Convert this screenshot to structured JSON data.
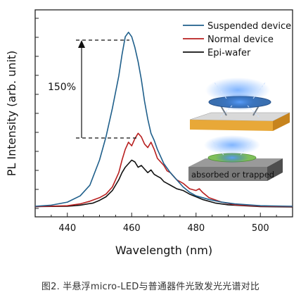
{
  "caption": "图2. 半悬浮micro-LED与普通器件光致发光光谱对比",
  "chart_data": {
    "type": "line",
    "xlabel": "Wavelength (nm)",
    "ylabel": "PL Intensity (arb. unit)",
    "xlim": [
      430,
      510
    ],
    "ylim": [
      0,
      1
    ],
    "xticks": [
      440,
      460,
      480,
      500
    ],
    "yticks_labeled": false,
    "grid": false,
    "legend_position": "top-right",
    "series": [
      {
        "name": "Suspended device",
        "color": "#1f5f8b",
        "points": [
          [
            430,
            0.012
          ],
          [
            435,
            0.018
          ],
          [
            440,
            0.035
          ],
          [
            444,
            0.07
          ],
          [
            447,
            0.13
          ],
          [
            450,
            0.27
          ],
          [
            452,
            0.4
          ],
          [
            454,
            0.56
          ],
          [
            456,
            0.74
          ],
          [
            457,
            0.86
          ],
          [
            458,
            0.96
          ],
          [
            459,
            0.985
          ],
          [
            460,
            0.96
          ],
          [
            461,
            0.9
          ],
          [
            462,
            0.82
          ],
          [
            463,
            0.72
          ],
          [
            464,
            0.6
          ],
          [
            465,
            0.5
          ],
          [
            466,
            0.42
          ],
          [
            467,
            0.38
          ],
          [
            468,
            0.33
          ],
          [
            470,
            0.25
          ],
          [
            472,
            0.2
          ],
          [
            474,
            0.16
          ],
          [
            476,
            0.12
          ],
          [
            478,
            0.09
          ],
          [
            480,
            0.07
          ],
          [
            484,
            0.05
          ],
          [
            488,
            0.035
          ],
          [
            492,
            0.025
          ],
          [
            500,
            0.015
          ],
          [
            510,
            0.012
          ]
        ]
      },
      {
        "name": "Normal device",
        "color": "#b81f1f",
        "points": [
          [
            430,
            0.01
          ],
          [
            440,
            0.015
          ],
          [
            444,
            0.025
          ],
          [
            447,
            0.04
          ],
          [
            450,
            0.06
          ],
          [
            452,
            0.08
          ],
          [
            454,
            0.12
          ],
          [
            456,
            0.2
          ],
          [
            457,
            0.27
          ],
          [
            458,
            0.33
          ],
          [
            459,
            0.37
          ],
          [
            460,
            0.35
          ],
          [
            461,
            0.39
          ],
          [
            462,
            0.42
          ],
          [
            463,
            0.4
          ],
          [
            464,
            0.36
          ],
          [
            465,
            0.34
          ],
          [
            466,
            0.37
          ],
          [
            467,
            0.33
          ],
          [
            468,
            0.28
          ],
          [
            469,
            0.26
          ],
          [
            470,
            0.24
          ],
          [
            471,
            0.21
          ],
          [
            472,
            0.2
          ],
          [
            473,
            0.18
          ],
          [
            474,
            0.16
          ],
          [
            476,
            0.14
          ],
          [
            478,
            0.11
          ],
          [
            480,
            0.1
          ],
          [
            481,
            0.11
          ],
          [
            482,
            0.09
          ],
          [
            484,
            0.06
          ],
          [
            488,
            0.035
          ],
          [
            492,
            0.02
          ],
          [
            500,
            0.012
          ],
          [
            510,
            0.01
          ]
        ]
      },
      {
        "name": "Epi-wafer",
        "color": "#111111",
        "points": [
          [
            430,
            0.01
          ],
          [
            440,
            0.012
          ],
          [
            444,
            0.018
          ],
          [
            448,
            0.03
          ],
          [
            450,
            0.045
          ],
          [
            452,
            0.065
          ],
          [
            454,
            0.1
          ],
          [
            456,
            0.16
          ],
          [
            457,
            0.2
          ],
          [
            458,
            0.23
          ],
          [
            459,
            0.25
          ],
          [
            460,
            0.27
          ],
          [
            461,
            0.26
          ],
          [
            462,
            0.23
          ],
          [
            463,
            0.24
          ],
          [
            464,
            0.22
          ],
          [
            465,
            0.2
          ],
          [
            466,
            0.215
          ],
          [
            467,
            0.19
          ],
          [
            468,
            0.18
          ],
          [
            469,
            0.17
          ],
          [
            470,
            0.15
          ],
          [
            471,
            0.14
          ],
          [
            472,
            0.13
          ],
          [
            474,
            0.11
          ],
          [
            476,
            0.1
          ],
          [
            478,
            0.08
          ],
          [
            480,
            0.065
          ],
          [
            482,
            0.05
          ],
          [
            486,
            0.03
          ],
          [
            490,
            0.02
          ],
          [
            500,
            0.01
          ],
          [
            510,
            0.008
          ]
        ]
      }
    ],
    "annotations": [
      {
        "label": "150%",
        "type": "double-dashed-bracket-arrow",
        "y_top": 0.985,
        "y_bottom": 0.395
      },
      {
        "label": "absorbed or trapped",
        "type": "schematic-inset"
      }
    ]
  },
  "colors": {
    "inset_substrate_top": "#e8a838",
    "inset_substrate_side": "#c7841e",
    "inset_grey_top": "#7a7a7a",
    "inset_grey_side": "#4e4e4e",
    "inset_glow": "#3a7bd5",
    "inset_disk": "#7fbf5a"
  }
}
